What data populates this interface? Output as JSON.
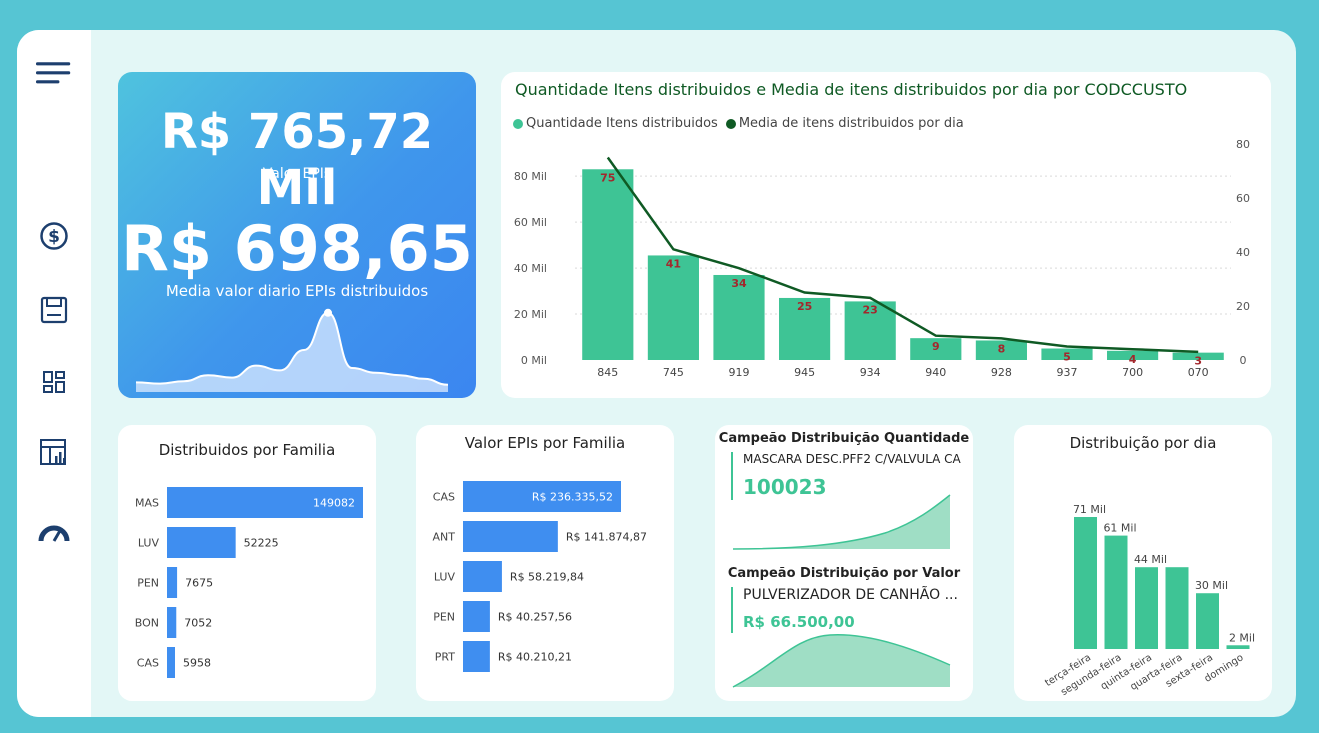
{
  "sidebar": {
    "icons": [
      "menu-icon",
      "dollar-icon",
      "save-icon",
      "dashboard-icon",
      "report-icon",
      "gauge-icon"
    ]
  },
  "kpi": {
    "value1": "R$ 765,72 Mil",
    "label1": "Valor EPIs",
    "value2": "R$ 698,65",
    "label2": "Media valor diario EPIs distribuidos",
    "sparkline": [
      8,
      7,
      9,
      14,
      12,
      22,
      18,
      35,
      66,
      20,
      16,
      14,
      11,
      6
    ],
    "sparkline_max": 70
  },
  "combo": {
    "title": "Quantidade Itens distribuidos e Media de itens distribuidos por dia por CODCCUSTO",
    "legend1": "Quantidade Itens distribuidos",
    "legend2": "Media de itens distribuidos por dia",
    "yleft_ticks": [
      "80 Mil",
      "60 Mil",
      "40 Mil",
      "20 Mil",
      "0 Mil"
    ],
    "yright_ticks": [
      "80",
      "60",
      "40",
      "20",
      "0"
    ]
  },
  "familia": {
    "title": "Distribuidos por Familia"
  },
  "valor_familia": {
    "title": "Valor EPIs por Familia"
  },
  "campeao": {
    "qtd_title": "Campeão Distribuição Quantidade",
    "qtd_item": "MASCARA DESC.PFF2 C/VALVULA CA",
    "qtd_value": "100023",
    "valor_title": "Campeão Distribuição por Valor",
    "valor_item": "PULVERIZADOR DE CANHÃO ...",
    "valor_value": "R$ 66.500,00"
  },
  "dia": {
    "title": "Distribuição por dia"
  },
  "colors": {
    "green": "#3ec495",
    "dark_green": "#0f5a24",
    "blue": "#3f8ef0",
    "label_red": "#a3272c"
  },
  "chart_data": [
    {
      "type": "bar",
      "title": "Quantidade Itens distribuidos e Media de itens distribuidos por dia por CODCCUSTO",
      "categories": [
        "845",
        "745",
        "919",
        "945",
        "934",
        "940",
        "928",
        "937",
        "700",
        "070"
      ],
      "series": [
        {
          "name": "Quantidade Itens distribuidos",
          "type": "bar",
          "values": [
            83000,
            45500,
            37000,
            27000,
            25500,
            9500,
            8500,
            5000,
            4000,
            3200
          ]
        },
        {
          "name": "Media de itens distribuidos por dia",
          "type": "line",
          "values": [
            75,
            41,
            34,
            25,
            23,
            9,
            8,
            5,
            4,
            3
          ]
        }
      ],
      "data_labels": [
        "75",
        "41",
        "34",
        "25",
        "23",
        "9",
        "8",
        "5",
        "4",
        "3"
      ],
      "ylim": [
        0,
        94000
      ],
      "ylim_right": [
        0,
        80
      ],
      "legend": "top-left",
      "grid": true
    },
    {
      "type": "bar",
      "orientation": "horizontal",
      "title": "Distribuidos por Familia",
      "categories": [
        "MAS",
        "LUV",
        "PEN",
        "BON",
        "CAS"
      ],
      "values": [
        149082,
        52225,
        7675,
        7052,
        5958
      ],
      "labels": [
        "149082",
        "52225",
        "7675",
        "7052",
        "5958"
      ]
    },
    {
      "type": "bar",
      "orientation": "horizontal",
      "title": "Valor EPIs por Familia",
      "categories": [
        "CAS",
        "ANT",
        "LUV",
        "PEN",
        "PRT"
      ],
      "values": [
        236335.52,
        141874.87,
        58219.84,
        40257.56,
        40210.21
      ],
      "labels": [
        "R$ 236.335,52",
        "R$ 141.874,87",
        "R$ 58.219,84",
        "R$ 40.257,56",
        "R$ 40.210,21"
      ]
    },
    {
      "type": "bar",
      "title": "Distribuição por dia",
      "categories": [
        "terça-feira",
        "segunda-feira",
        "quinta-feira",
        "quarta-feira",
        "sexta-feira",
        "domingo"
      ],
      "values": [
        71,
        61,
        44,
        44,
        30,
        2
      ],
      "labels": [
        "71 Mil",
        "61 Mil",
        "44 Mil",
        "",
        "30 Mil",
        "2 Mil"
      ]
    }
  ]
}
